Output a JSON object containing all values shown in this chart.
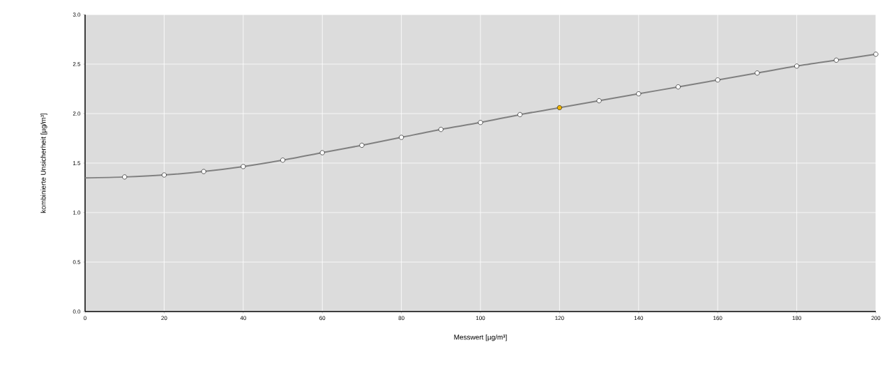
{
  "chart_data": {
    "type": "line",
    "xlabel": "Messwert    [µg/m³]",
    "ylabel": "kombinierte Unsicherheit    [µg/m³]",
    "xlim": [
      0,
      200
    ],
    "xticks": [
      0,
      20,
      40,
      60,
      80,
      100,
      120,
      140,
      160,
      180,
      200
    ],
    "ylim": [
      0,
      3.0
    ],
    "yticks": [
      {
        "value": 0,
        "label": "0.0"
      },
      {
        "value": 0.5,
        "label": "0.5"
      },
      {
        "value": 1.0,
        "label": "1.0"
      },
      {
        "value": 1.5,
        "label": "1.5"
      },
      {
        "value": 2.0,
        "label": "2.0"
      },
      {
        "value": 2.5,
        "label": "2.5"
      },
      {
        "value": 3.0,
        "label": "3.0"
      }
    ],
    "grid": true,
    "series": [
      {
        "color": "#808080",
        "marker": "none",
        "x": [
          0,
          10,
          20,
          30,
          40,
          50,
          60,
          70,
          80,
          90,
          100,
          110,
          120,
          130,
          140,
          150,
          160,
          170,
          180,
          190,
          200
        ],
        "values": [
          1.35,
          1.36,
          1.38,
          1.415,
          1.465,
          1.53,
          1.605,
          1.68,
          1.76,
          1.84,
          1.91,
          1.99,
          2.06,
          2.13,
          2.2,
          2.27,
          2.34,
          2.41,
          2.48,
          2.54,
          2.6
        ]
      },
      {
        "type": "scatter",
        "marker": "circle",
        "colors": [
          "#ffffff",
          "#ffffff",
          "#ffffff",
          "#ffffff",
          "#ffffff",
          "#ffffff",
          "#ffffff",
          "#ffffff",
          "#ffffff",
          "#ffffff",
          "#ffffff",
          "#f0b400",
          "#ffffff",
          "#ffffff",
          "#ffffff",
          "#ffffff",
          "#ffffff",
          "#ffffff",
          "#ffffff",
          "#ffffff"
        ],
        "x": [
          10,
          20,
          30,
          40,
          50,
          60,
          70,
          80,
          90,
          100,
          110,
          120,
          130,
          140,
          150,
          160,
          170,
          180,
          190,
          200
        ],
        "values": [
          1.36,
          1.38,
          1.415,
          1.465,
          1.53,
          1.605,
          1.68,
          1.76,
          1.84,
          1.91,
          1.99,
          2.06,
          2.13,
          2.2,
          2.27,
          2.34,
          2.41,
          2.48,
          2.54,
          2.6
        ]
      }
    ]
  }
}
